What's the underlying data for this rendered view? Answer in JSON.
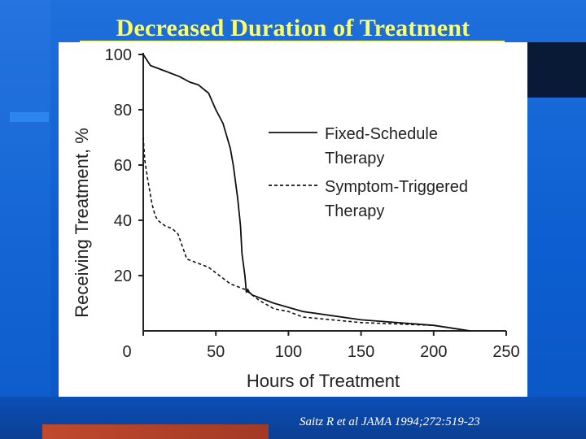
{
  "slide": {
    "title": "Decreased Duration of Treatment",
    "citation": "Saitz R et al JAMA 1994;272:519-23"
  },
  "colors": {
    "background": "#0d5fd1",
    "title": "#ffff66",
    "chart_background": "#ffffff",
    "line": "#000000"
  },
  "chart_data": {
    "type": "line",
    "title": "",
    "xlabel": "Hours of Treatment",
    "ylabel": "Receiving Treatment, %",
    "xlim": [
      0,
      250
    ],
    "ylim": [
      0,
      100
    ],
    "x_ticks": [
      0,
      50,
      100,
      150,
      200,
      250
    ],
    "y_ticks": [
      20,
      40,
      60,
      80,
      100
    ],
    "grid": false,
    "legend_position": "right-center",
    "series": [
      {
        "name": "Fixed-Schedule Therapy",
        "style": "solid",
        "x": [
          0,
          5,
          15,
          25,
          32,
          38,
          45,
          50,
          55,
          60,
          62,
          65,
          67,
          68,
          70,
          71,
          72,
          73,
          75,
          90,
          110,
          150,
          200,
          225
        ],
        "y": [
          100,
          96,
          94,
          92,
          90,
          89,
          86,
          80,
          75,
          66,
          60,
          48,
          38,
          28,
          20,
          14,
          15,
          14,
          13,
          10,
          7,
          4,
          2,
          0
        ]
      },
      {
        "name": "Symptom-Triggered Therapy",
        "style": "dashed",
        "x": [
          0,
          1,
          3,
          6,
          8,
          10,
          15,
          20,
          24,
          28,
          30,
          35,
          45,
          50,
          55,
          60,
          70,
          80,
          90,
          100,
          110,
          130,
          150,
          200,
          225
        ],
        "y": [
          70,
          62,
          55,
          46,
          42,
          40,
          38,
          37,
          35,
          29,
          26,
          25,
          23,
          21,
          19,
          17,
          15,
          11,
          8,
          7,
          5,
          4,
          3,
          2,
          0
        ]
      }
    ]
  }
}
